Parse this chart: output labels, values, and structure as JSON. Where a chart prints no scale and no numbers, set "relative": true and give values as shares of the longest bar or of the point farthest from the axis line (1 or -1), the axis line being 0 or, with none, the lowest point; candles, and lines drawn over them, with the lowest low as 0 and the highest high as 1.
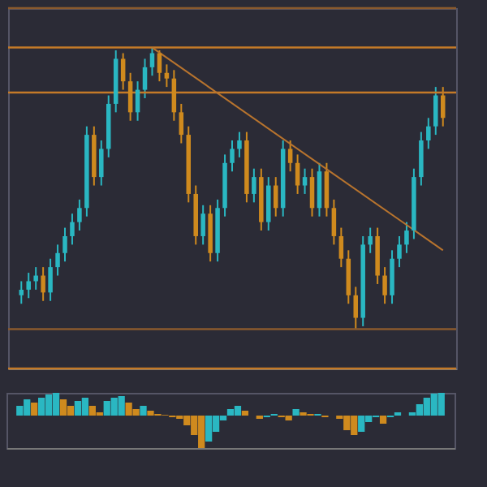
{
  "chart_data": [
    {
      "type": "candlestick",
      "relative": true,
      "categories": [
        null,
        null,
        null,
        null,
        null,
        null,
        null,
        null,
        null,
        null,
        null,
        null,
        null,
        null,
        null,
        null,
        null,
        null,
        null,
        null,
        null,
        null,
        null,
        null,
        null,
        null,
        null,
        null,
        null,
        null,
        null,
        null,
        null,
        null,
        null,
        null,
        null,
        null,
        null,
        null,
        null,
        null,
        null,
        null,
        null,
        null,
        null,
        null,
        null,
        null,
        null,
        null,
        null,
        null,
        null,
        null,
        null,
        null,
        null
      ],
      "ohlc": [
        [
          0.12,
          0.17,
          0.09,
          0.14
        ],
        [
          0.14,
          0.2,
          0.11,
          0.17
        ],
        [
          0.17,
          0.22,
          0.14,
          0.19
        ],
        [
          0.19,
          0.22,
          0.1,
          0.13
        ],
        [
          0.13,
          0.25,
          0.1,
          0.22
        ],
        [
          0.22,
          0.3,
          0.19,
          0.27
        ],
        [
          0.27,
          0.36,
          0.24,
          0.33
        ],
        [
          0.33,
          0.41,
          0.3,
          0.38
        ],
        [
          0.38,
          0.46,
          0.35,
          0.43
        ],
        [
          0.43,
          0.72,
          0.4,
          0.69
        ],
        [
          0.69,
          0.72,
          0.51,
          0.54
        ],
        [
          0.54,
          0.67,
          0.51,
          0.64
        ],
        [
          0.64,
          0.83,
          0.61,
          0.8
        ],
        [
          0.8,
          0.99,
          0.77,
          0.96
        ],
        [
          0.96,
          0.98,
          0.85,
          0.88
        ],
        [
          0.88,
          0.91,
          0.74,
          0.77
        ],
        [
          0.77,
          0.88,
          0.74,
          0.85
        ],
        [
          0.85,
          0.96,
          0.82,
          0.93
        ],
        [
          0.93,
          1,
          0.9,
          0.98
        ],
        [
          0.98,
          0.99,
          0.88,
          0.91
        ],
        [
          0.91,
          0.94,
          0.86,
          0.89
        ],
        [
          0.89,
          0.92,
          0.74,
          0.77
        ],
        [
          0.77,
          0.8,
          0.66,
          0.69
        ],
        [
          0.69,
          0.72,
          0.45,
          0.48
        ],
        [
          0.48,
          0.51,
          0.3,
          0.33
        ],
        [
          0.33,
          0.44,
          0.3,
          0.41
        ],
        [
          0.41,
          0.44,
          0.24,
          0.27
        ],
        [
          0.27,
          0.46,
          0.24,
          0.43
        ],
        [
          0.43,
          0.62,
          0.4,
          0.59
        ],
        [
          0.59,
          0.67,
          0.56,
          0.64
        ],
        [
          0.64,
          0.7,
          0.61,
          0.67
        ],
        [
          0.67,
          0.7,
          0.45,
          0.48
        ],
        [
          0.48,
          0.57,
          0.45,
          0.54
        ],
        [
          0.54,
          0.57,
          0.35,
          0.38
        ],
        [
          0.38,
          0.54,
          0.35,
          0.51
        ],
        [
          0.51,
          0.54,
          0.4,
          0.43
        ],
        [
          0.43,
          0.67,
          0.4,
          0.64
        ],
        [
          0.64,
          0.67,
          0.56,
          0.59
        ],
        [
          0.59,
          0.62,
          0.48,
          0.51
        ],
        [
          0.51,
          0.57,
          0.48,
          0.54
        ],
        [
          0.54,
          0.57,
          0.4,
          0.43
        ],
        [
          0.43,
          0.59,
          0.4,
          0.56
        ],
        [
          0.56,
          0.59,
          0.4,
          0.43
        ],
        [
          0.43,
          0.46,
          0.3,
          0.33
        ],
        [
          0.33,
          0.36,
          0.22,
          0.25
        ],
        [
          0.25,
          0.28,
          0.09,
          0.12
        ],
        [
          0.12,
          0.15,
          0,
          0.04
        ],
        [
          0.04,
          0.33,
          0.01,
          0.3
        ],
        [
          0.3,
          0.36,
          0.27,
          0.33
        ],
        [
          0.33,
          0.36,
          0.16,
          0.19
        ],
        [
          0.19,
          0.22,
          0.09,
          0.12
        ],
        [
          0.12,
          0.28,
          0.09,
          0.25
        ],
        [
          0.25,
          0.33,
          0.22,
          0.3
        ],
        [
          0.3,
          0.38,
          0.27,
          0.35
        ],
        [
          0.35,
          0.57,
          0.32,
          0.54
        ],
        [
          0.54,
          0.7,
          0.51,
          0.67
        ],
        [
          0.67,
          0.75,
          0.64,
          0.72
        ],
        [
          0.72,
          0.86,
          0.69,
          0.83
        ],
        [
          0.83,
          0.86,
          0.72,
          0.75
        ]
      ],
      "series": [
        {
          "type": "line",
          "color": "#b8742e",
          "values": [
            null,
            null,
            null,
            null,
            null,
            null,
            null,
            null,
            null,
            null,
            null,
            null,
            null,
            null,
            null,
            null,
            null,
            null,
            1,
            null,
            null,
            null,
            null,
            null,
            null,
            null,
            null,
            null,
            null,
            null,
            null,
            null,
            null,
            null,
            null,
            null,
            null,
            null,
            null,
            null,
            null,
            null,
            null,
            null,
            null,
            null,
            null,
            null,
            null,
            null,
            null,
            null,
            null,
            null,
            null,
            null,
            null,
            null,
            0.28
          ]
        }
      ],
      "ref_lines": [
        {
          "axis": "y",
          "value": 1.14,
          "color": "#8a5a2e"
        },
        {
          "axis": "y",
          "value": 1,
          "color": "#c47a28"
        },
        {
          "axis": "y",
          "value": 0.84,
          "color": "#c47a28"
        },
        {
          "axis": "y",
          "value": 0,
          "color": "#8a5a2e"
        },
        {
          "axis": "y",
          "value": -0.14,
          "color": "#c47a28"
        }
      ]
    },
    {
      "type": "bar",
      "relative": true,
      "categories": [
        null,
        null,
        null,
        null,
        null,
        null,
        null,
        null,
        null,
        null,
        null,
        null,
        null,
        null,
        null,
        null,
        null,
        null,
        null,
        null,
        null,
        null,
        null,
        null,
        null,
        null,
        null,
        null,
        null,
        null,
        null,
        null,
        null,
        null,
        null,
        null,
        null,
        null,
        null,
        null,
        null,
        null,
        null,
        null,
        null,
        null,
        null,
        null,
        null,
        null,
        null,
        null,
        null,
        null,
        null,
        null,
        null,
        null,
        null
      ],
      "values": [
        0.3,
        0.5,
        0.4,
        0.55,
        0.65,
        0.7,
        0.5,
        0.3,
        0.45,
        0.55,
        0.3,
        0.1,
        0.45,
        0.55,
        0.6,
        0.4,
        0.2,
        0.3,
        0.15,
        0.05,
        0.02,
        -0.05,
        -0.1,
        -0.3,
        -0.6,
        -1,
        -0.8,
        -0.5,
        -0.15,
        0.2,
        0.3,
        0.15,
        0,
        -0.1,
        -0.05,
        0.05,
        -0.05,
        -0.15,
        0.2,
        0.1,
        0.05,
        0.05,
        -0.05,
        0,
        -0.1,
        -0.45,
        -0.6,
        -0.5,
        -0.2,
        -0.05,
        -0.25,
        -0.05,
        0.1,
        0,
        0.1,
        0.35,
        0.55,
        0.68,
        0.7
      ]
    }
  ]
}
